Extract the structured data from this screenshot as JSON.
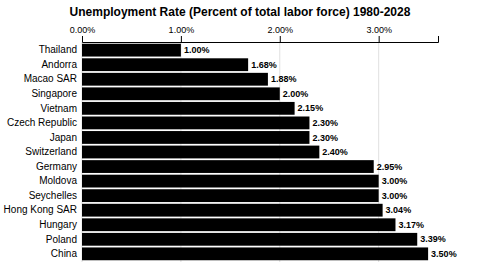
{
  "chart_data": {
    "type": "bar",
    "orientation": "horizontal",
    "title": "Unemployment Rate (Percent of total labor force) 1980-2028",
    "categories": [
      "Thailand",
      "Andorra",
      "Macao SAR",
      "Singapore",
      "Vietnam",
      "Czech Republic",
      "Japan",
      "Switzerland",
      "Germany",
      "Moldova",
      "Seychelles",
      "Hong Kong SAR",
      "Hungary",
      "Poland",
      "China"
    ],
    "values": [
      1.0,
      1.68,
      1.88,
      2.0,
      2.15,
      2.3,
      2.3,
      2.4,
      2.95,
      3.0,
      3.0,
      3.04,
      3.17,
      3.39,
      3.5
    ],
    "value_labels": [
      "1.00%",
      "1.68%",
      "1.88%",
      "2.00%",
      "2.15%",
      "2.30%",
      "2.30%",
      "2.40%",
      "2.95%",
      "3.00%",
      "3.00%",
      "3.04%",
      "3.17%",
      "3.39%",
      "3.50%"
    ],
    "data_labels": true,
    "color": "#000000",
    "xlim": [
      0,
      3.6
    ],
    "xticks": [
      {
        "value": 0.0,
        "label": "0.00%"
      },
      {
        "value": 1.0,
        "label": "1.00%"
      },
      {
        "value": 2.0,
        "label": "2.00%"
      },
      {
        "value": 3.0,
        "label": "3.00%"
      }
    ],
    "grid": true
  }
}
